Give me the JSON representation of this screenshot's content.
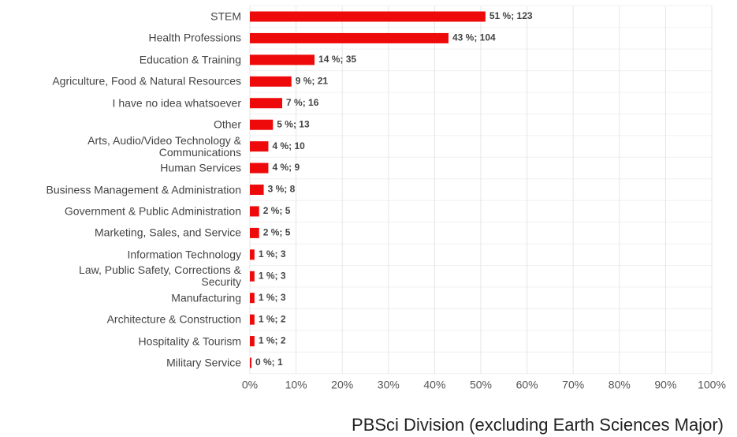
{
  "chart_data": {
    "type": "barh",
    "title": "PBSci Division (excluding Earth Sciences Major)",
    "categories": [
      "STEM",
      "Health Professions",
      "Education & Training",
      "Agriculture, Food & Natural Resources",
      "I have no idea whatsoever",
      "Other",
      "Arts, Audio/Video Technology &\nCommunications",
      "Human Services",
      "Business Management & Administration",
      "Government & Public Administration",
      "Marketing, Sales, and Service",
      "Information Technology",
      "Law, Public Safety, Corrections &\nSecurity",
      "Manufacturing",
      "Architecture & Construction",
      "Hospitality & Tourism",
      "Military Service"
    ],
    "values": [
      51,
      43,
      14,
      9,
      7,
      5,
      4,
      4,
      3,
      2,
      2,
      1,
      1,
      1,
      1,
      1,
      0
    ],
    "value_labels": [
      "51 %; 123",
      "43 %; 104",
      "14 %; 35",
      "9 %; 21",
      "7 %; 16",
      "5 %; 13",
      "4 %; 10",
      "4 %; 9",
      "3 %; 8",
      "2 %; 5",
      "2 %; 5",
      "1 %; 3",
      "1 %; 3",
      "1 %; 3",
      "1 %; 2",
      "1 %; 2",
      "0 %; 1"
    ],
    "color": "#ee0a0a",
    "xlim": [
      0,
      100
    ],
    "xticks": [
      {
        "value": 0,
        "label": "0%"
      },
      {
        "value": 10,
        "label": "10%"
      },
      {
        "value": 20,
        "label": "20%"
      },
      {
        "value": 30,
        "label": "30%"
      },
      {
        "value": 40,
        "label": "40%"
      },
      {
        "value": 50,
        "label": "50%"
      },
      {
        "value": 60,
        "label": "60%"
      },
      {
        "value": 70,
        "label": "70%"
      },
      {
        "value": 80,
        "label": "80%"
      },
      {
        "value": 90,
        "label": "90%"
      },
      {
        "value": 100,
        "label": "100%"
      }
    ],
    "grid": true
  }
}
